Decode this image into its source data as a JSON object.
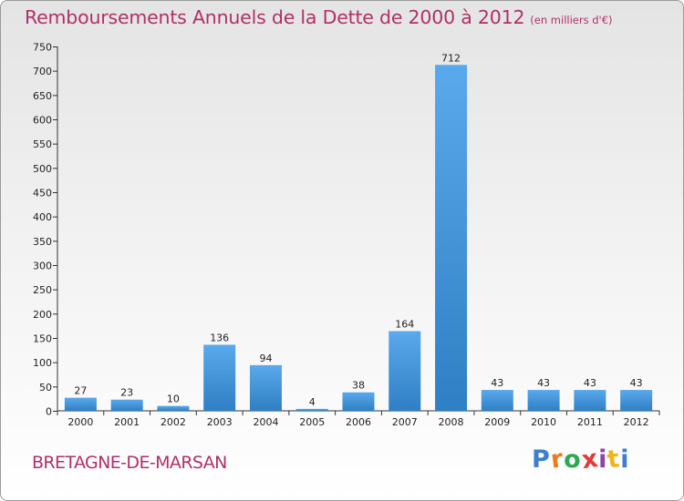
{
  "chart_data": {
    "type": "bar",
    "title": "Remboursements Annuels de la Dette de 2000 à 2012",
    "subtitle": "(en milliers d'€)",
    "categories": [
      "2000",
      "2001",
      "2002",
      "2003",
      "2004",
      "2005",
      "2006",
      "2007",
      "2008",
      "2009",
      "2010",
      "2011",
      "2012"
    ],
    "values": [
      27,
      23,
      10,
      136,
      94,
      4,
      38,
      164,
      712,
      43,
      43,
      43,
      43
    ],
    "ylim": [
      0,
      750
    ],
    "yticks": [
      0,
      50,
      100,
      150,
      200,
      250,
      300,
      350,
      400,
      450,
      500,
      550,
      600,
      650,
      700,
      750
    ],
    "grid": false,
    "bar_color": "#3a8ed8"
  },
  "footer": {
    "commune": "BRETAGNE-DE-MARSAN",
    "logo_letters": [
      "P",
      "r",
      "o",
      "x",
      "i",
      "t",
      "i"
    ],
    "logo_colors": [
      "#3b7fd0",
      "#e67e22",
      "#2fa84f",
      "#e23a3a",
      "#8e44ad",
      "#f1b51c",
      "#3b7fd0"
    ]
  }
}
